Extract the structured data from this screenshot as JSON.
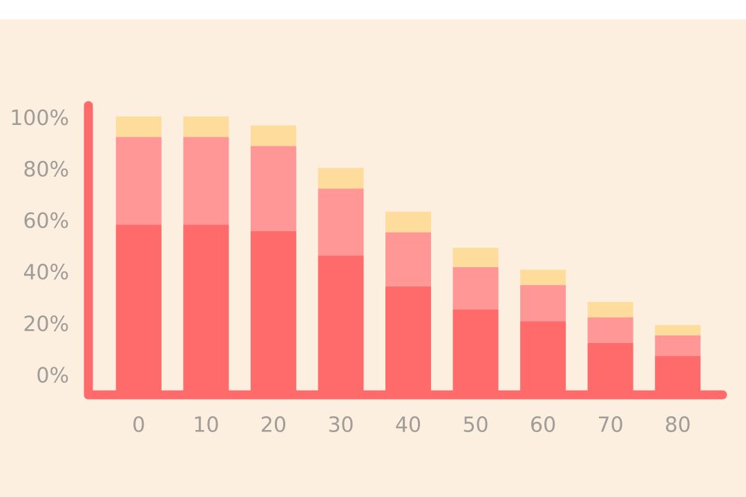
{
  "chart_data": {
    "type": "stacked-bar",
    "categories": [
      "0",
      "10",
      "20",
      "30",
      "40",
      "50",
      "60",
      "70",
      "80"
    ],
    "series": [
      {
        "color": "#ff6b6b",
        "values": [
          59,
          59,
          56.5,
          47,
          35,
          26,
          21.5,
          13,
          8
        ]
      },
      {
        "color": "#ff9797",
        "values": [
          34,
          34,
          33,
          26,
          21,
          16.5,
          14,
          10,
          8
        ]
      },
      {
        "color": "#fddc9c",
        "values": [
          8,
          8,
          8,
          8,
          8,
          7.5,
          6,
          6,
          4
        ]
      }
    ],
    "ylim": [
      -5.5,
      106
    ],
    "yticks": [
      {
        "value": 0,
        "label": "0%"
      },
      {
        "value": 20,
        "label": "20%"
      },
      {
        "value": 40,
        "label": "40%"
      },
      {
        "value": 60,
        "label": "60%"
      },
      {
        "value": 80,
        "label": "80%"
      },
      {
        "value": 100,
        "label": "100%"
      }
    ]
  }
}
